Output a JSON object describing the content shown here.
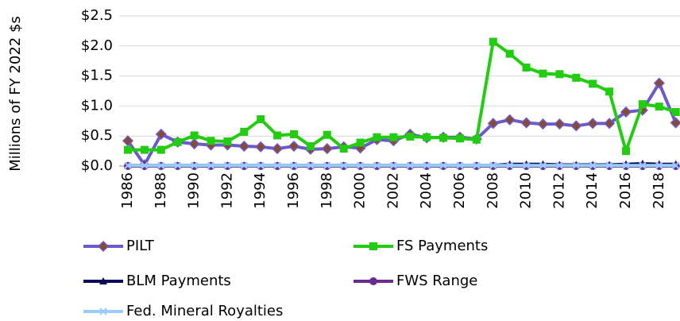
{
  "chart_data": {
    "type": "line",
    "y_label": "Millions of FY 2022 $s",
    "categories": [
      "1986",
      null,
      "1988",
      null,
      "1990",
      null,
      "1992",
      null,
      "1994",
      null,
      "1996",
      null,
      "1998",
      null,
      "2000",
      null,
      "2002",
      null,
      "2004",
      null,
      "2006",
      null,
      "2008",
      null,
      "2010",
      null,
      "2012",
      null,
      "2014",
      null,
      "2016",
      null,
      "2018",
      null
    ],
    "ylim": [
      0,
      2.5
    ],
    "yticks": [
      {
        "value": 0,
        "label": "$0.0"
      },
      {
        "value": 0.5,
        "label": "$0.5"
      },
      {
        "value": 1,
        "label": "$1.0"
      },
      {
        "value": 1.5,
        "label": "$1.5"
      },
      {
        "value": 2,
        "label": "$2.0"
      },
      {
        "value": 2.5,
        "label": "$2.5"
      }
    ],
    "grid": true,
    "series": [
      {
        "name": "PILT",
        "color": "#6a5acd",
        "marker": "diamond",
        "marker_color": "#8b4a2b",
        "values": [
          0.42,
          0.02,
          0.53,
          0.4,
          0.37,
          0.35,
          0.35,
          0.33,
          0.32,
          0.29,
          0.33,
          0.28,
          0.29,
          0.32,
          0.3,
          0.44,
          0.42,
          0.53,
          0.47,
          0.48,
          0.48,
          0.45,
          0.71,
          0.77,
          0.72,
          0.7,
          0.7,
          0.67,
          0.71,
          0.71,
          0.9,
          0.93,
          1.38,
          0.72
        ]
      },
      {
        "name": "FS Payments",
        "color": "#22cc11",
        "marker": "square",
        "marker_color": "#22cc11",
        "values": [
          0.27,
          0.27,
          0.27,
          0.4,
          0.51,
          0.42,
          0.41,
          0.57,
          0.78,
          0.51,
          0.53,
          0.33,
          0.52,
          0.29,
          0.39,
          0.48,
          0.48,
          0.49,
          0.48,
          0.47,
          0.46,
          0.44,
          2.07,
          1.87,
          1.64,
          1.54,
          1.53,
          1.47,
          1.37,
          1.24,
          0.25,
          1.03,
          0.99,
          0.9
        ]
      },
      {
        "name": "BLM Payments",
        "color": "#0a0a5a",
        "marker": "triangle",
        "marker_color": "#0a0a5a",
        "values": [
          0.01,
          0.01,
          0.01,
          0.01,
          0.01,
          0.01,
          0.01,
          0.01,
          0.01,
          0.01,
          0.01,
          0.01,
          0.01,
          0.01,
          0.01,
          0.01,
          0.01,
          0.01,
          0.01,
          0.01,
          0.01,
          0.01,
          0.01,
          0.03,
          0.03,
          0.03,
          0.02,
          0.02,
          0.02,
          0.02,
          0.03,
          0.04,
          0.03,
          0.03
        ]
      },
      {
        "name": "FWS Range",
        "color": "#6a2c91",
        "marker": "circle",
        "marker_color": "#6a2c91",
        "values": [
          0,
          0,
          0,
          0,
          0,
          0,
          0,
          0,
          0,
          0,
          0,
          0,
          0,
          0,
          0,
          0,
          0,
          0,
          0,
          0,
          0,
          0,
          0,
          0,
          0,
          0,
          0,
          0,
          0,
          0,
          0,
          0,
          0,
          0
        ]
      },
      {
        "name": "Fed. Mineral Royalties",
        "color": "#99ccff",
        "marker": "x",
        "marker_color": "#99ccff",
        "values": [
          0.01,
          0.01,
          0.01,
          0.01,
          0.01,
          0.01,
          0.01,
          0.01,
          0.01,
          0.01,
          0.01,
          0.01,
          0.01,
          0.01,
          0.01,
          0.01,
          0.01,
          0.01,
          0.01,
          0.01,
          0.01,
          0.01,
          0.01,
          0.01,
          0.01,
          0.01,
          0.01,
          0.01,
          0.01,
          0.01,
          0.01,
          0.01,
          0.01,
          0.01
        ]
      }
    ]
  }
}
